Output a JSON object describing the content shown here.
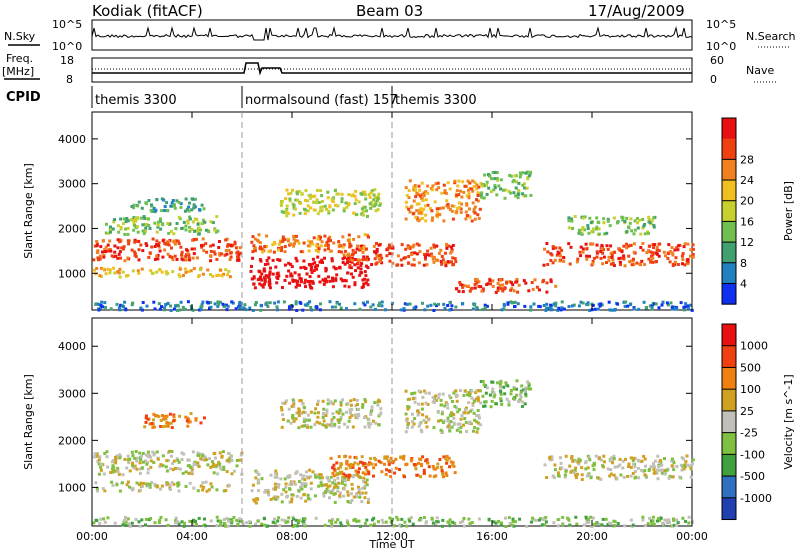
{
  "header": {
    "station": "Kodiak (fitACF)",
    "beam": "Beam 03",
    "date": "17/Aug/2009"
  },
  "status": {
    "nsky_label": "N.Sky",
    "nsearch_label": "N.Search",
    "nsky_ticks": [
      "10^5",
      "10^0"
    ],
    "nsearch_ticks": [
      "10^5",
      "10^0"
    ],
    "freq_label": "Freq.",
    "freq_unit": "[MHz]",
    "freq_ticks": [
      "18",
      "8"
    ],
    "nave_label": "Nave",
    "nave_ticks": [
      "60",
      "0"
    ],
    "cpid_label": "CPID",
    "cpid_segments": [
      {
        "label": "themis 3300",
        "start_h": 0.0,
        "end_h": 6.0
      },
      {
        "label": "normalsound (fast) 157",
        "start_h": 6.0,
        "end_h": 12.0
      },
      {
        "label": "themis 3300",
        "start_h": 12.0,
        "end_h": 24.0
      }
    ]
  },
  "chart_data": [
    {
      "type": "heatmap",
      "name": "power",
      "xlabel": "Time UT",
      "ylabel": "Slant Range [km]",
      "xlim": [
        0,
        24
      ],
      "ylim": [
        180,
        4600
      ],
      "x_ticks": [
        "00:00",
        "04:00",
        "08:00",
        "12:00",
        "16:00",
        "20:00",
        "00:00"
      ],
      "y_ticks": [
        1000,
        2000,
        3000,
        4000
      ],
      "colorbar": {
        "label": "Power [dB]",
        "ticks": [
          4,
          8,
          12,
          16,
          20,
          24,
          28
        ],
        "colors": [
          "#1030f0",
          "#2080c0",
          "#40a070",
          "#70c050",
          "#c8d030",
          "#f0c020",
          "#f08020",
          "#f04010",
          "#e81010"
        ]
      },
      "bands": [
        {
          "x0": 0.0,
          "x1": 6.0,
          "y0": 1300,
          "y1": 1800,
          "level": 7
        },
        {
          "x0": 0.0,
          "x1": 5.5,
          "y0": 950,
          "y1": 1150,
          "level": 5
        },
        {
          "x0": 0.5,
          "x1": 5.0,
          "y0": 1900,
          "y1": 2300,
          "level": 3
        },
        {
          "x0": 1.5,
          "x1": 4.5,
          "y0": 2400,
          "y1": 2700,
          "level": 2
        },
        {
          "x0": 6.3,
          "x1": 11.0,
          "y0": 700,
          "y1": 1400,
          "level": 9
        },
        {
          "x0": 6.3,
          "x1": 11.0,
          "y0": 1500,
          "y1": 1900,
          "level": 6
        },
        {
          "x0": 7.5,
          "x1": 11.5,
          "y0": 2300,
          "y1": 2900,
          "level": 4
        },
        {
          "x0": 10.0,
          "x1": 14.5,
          "y0": 1200,
          "y1": 1700,
          "level": 7
        },
        {
          "x0": 12.5,
          "x1": 15.5,
          "y0": 2200,
          "y1": 3100,
          "level": 6
        },
        {
          "x0": 14.5,
          "x1": 18.5,
          "y0": 600,
          "y1": 900,
          "level": 7
        },
        {
          "x0": 18.0,
          "x1": 24.0,
          "y0": 1200,
          "y1": 1700,
          "level": 7
        },
        {
          "x0": 15.5,
          "x1": 17.5,
          "y0": 2700,
          "y1": 3300,
          "level": 3
        },
        {
          "x0": 19.0,
          "x1": 22.5,
          "y0": 1900,
          "y1": 2300,
          "level": 3
        },
        {
          "x0": 0.0,
          "x1": 24.0,
          "y0": 200,
          "y1": 400,
          "level": 1
        }
      ]
    },
    {
      "type": "heatmap",
      "name": "velocity",
      "xlabel": "Time UT",
      "ylabel": "Slant Range [km]",
      "xlim": [
        0,
        24
      ],
      "ylim": [
        180,
        4600
      ],
      "x_ticks": [
        "00:00",
        "04:00",
        "08:00",
        "12:00",
        "16:00",
        "20:00",
        "00:00"
      ],
      "y_ticks": [
        1000,
        2000,
        3000,
        4000
      ],
      "colorbar": {
        "label": "Velocity [m s^-1]",
        "ticks": [
          1000,
          500,
          100,
          25,
          -25,
          -100,
          -500,
          -1000
        ],
        "colors": [
          "#2040b0",
          "#3070c0",
          "#40a040",
          "#80c040",
          "#c0c0b8",
          "#d0a020",
          "#f08010",
          "#f04010",
          "#e81010"
        ]
      },
      "bands": [
        {
          "x0": 0.0,
          "x1": 6.0,
          "y0": 1300,
          "y1": 1800,
          "level": 4
        },
        {
          "x0": 0.0,
          "x1": 5.5,
          "y0": 950,
          "y1": 1150,
          "level": 4
        },
        {
          "x0": 6.3,
          "x1": 11.0,
          "y0": 700,
          "y1": 1400,
          "level": 4
        },
        {
          "x0": 7.5,
          "x1": 11.5,
          "y0": 2300,
          "y1": 2900,
          "level": 4
        },
        {
          "x0": 9.5,
          "x1": 14.5,
          "y0": 1250,
          "y1": 1700,
          "level": 6
        },
        {
          "x0": 12.5,
          "x1": 15.5,
          "y0": 2200,
          "y1": 3100,
          "level": 4
        },
        {
          "x0": 18.0,
          "x1": 24.0,
          "y0": 1200,
          "y1": 1700,
          "level": 4
        },
        {
          "x0": 2.0,
          "x1": 4.5,
          "y0": 2300,
          "y1": 2600,
          "level": 6
        },
        {
          "x0": 15.5,
          "x1": 17.5,
          "y0": 2700,
          "y1": 3300,
          "level": 3
        },
        {
          "x0": 0.0,
          "x1": 24.0,
          "y0": 200,
          "y1": 400,
          "level": 3
        }
      ]
    }
  ]
}
